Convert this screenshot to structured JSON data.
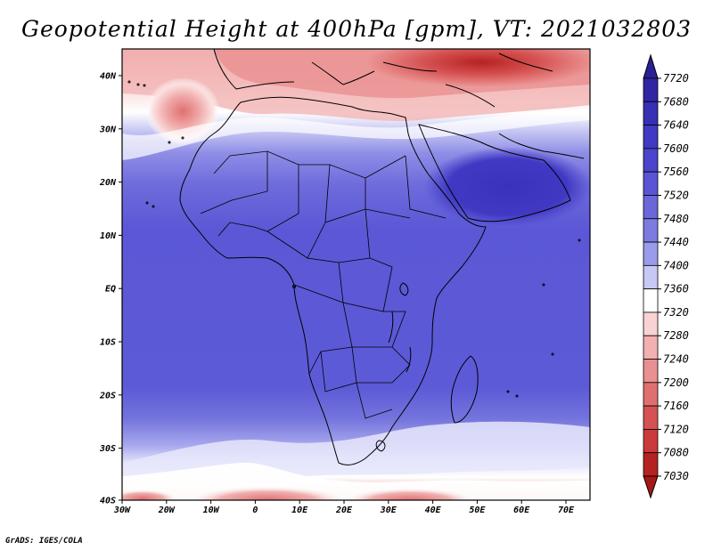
{
  "title": "Geopotential Height at 400hPa [gpm], VT: 2021032803",
  "credit": "GrADS: IGES/COLA",
  "axes": {
    "x_ticks": [
      "30W",
      "20W",
      "10W",
      "0",
      "10E",
      "20E",
      "30E",
      "40E",
      "50E",
      "60E",
      "70E"
    ],
    "y_ticks": [
      "40N",
      "30N",
      "20N",
      "10N",
      "EQ",
      "10S",
      "20S",
      "30S",
      "40S"
    ]
  },
  "colorbar": {
    "labels": [
      "7720",
      "7680",
      "7640",
      "7600",
      "7560",
      "7520",
      "7480",
      "7440",
      "7400",
      "7360",
      "7320",
      "7280",
      "7240",
      "7200",
      "7160",
      "7120",
      "7080",
      "7030"
    ],
    "colors": [
      "#2b1f95",
      "#3026a4",
      "#372fb4",
      "#4138c3",
      "#4b44cc",
      "#5a55d4",
      "#6a67da",
      "#7c7ce0",
      "#9b9beb",
      "#c8c8f4",
      "#ffffff",
      "#f9d3d3",
      "#f2b0b0",
      "#ea9090",
      "#e07070",
      "#d65252",
      "#ca3a3a",
      "#b52222",
      "#a51818"
    ]
  }
}
